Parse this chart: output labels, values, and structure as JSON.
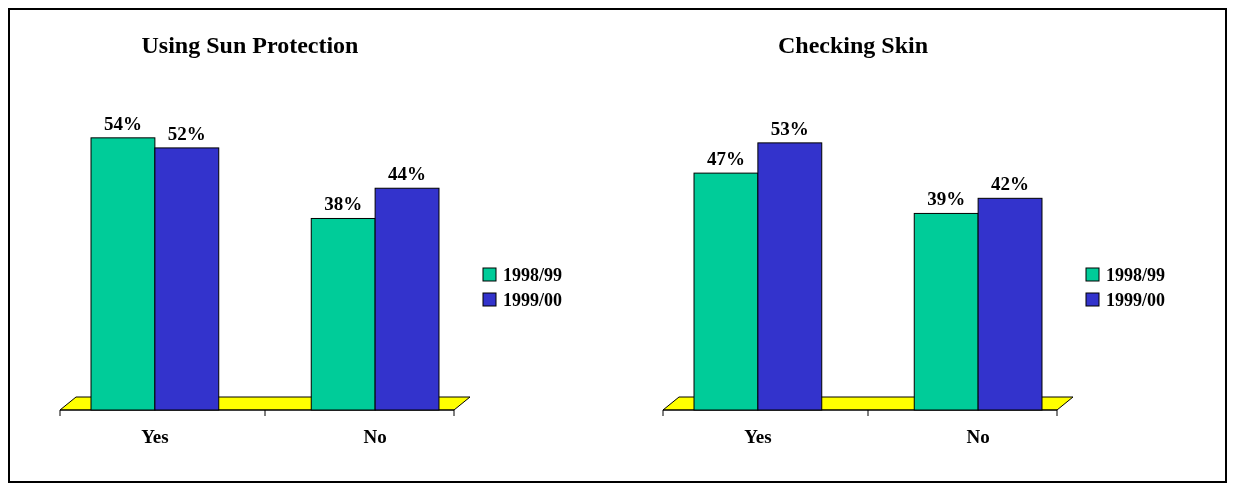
{
  "chart_data": [
    {
      "type": "bar",
      "title": "Using Sun Protection",
      "categories": [
        "Yes",
        "No"
      ],
      "series": [
        {
          "name": "1998/99",
          "color": "#00cc99",
          "values": [
            54,
            38
          ],
          "value_labels": [
            "54%",
            "38%"
          ]
        },
        {
          "name": "1999/00",
          "color": "#3333cc",
          "values": [
            52,
            44
          ],
          "value_labels": [
            "52%",
            "44%"
          ]
        }
      ],
      "legend": "right"
    },
    {
      "type": "bar",
      "title": "Checking Skin",
      "categories": [
        "Yes",
        "No"
      ],
      "series": [
        {
          "name": "1998/99",
          "color": "#00cc99",
          "values": [
            47,
            39
          ],
          "value_labels": [
            "47%",
            "39%"
          ]
        },
        {
          "name": "1999/00",
          "color": "#3333cc",
          "values": [
            53,
            42
          ],
          "value_labels": [
            "53%",
            "42%"
          ]
        }
      ],
      "legend": "right"
    }
  ]
}
